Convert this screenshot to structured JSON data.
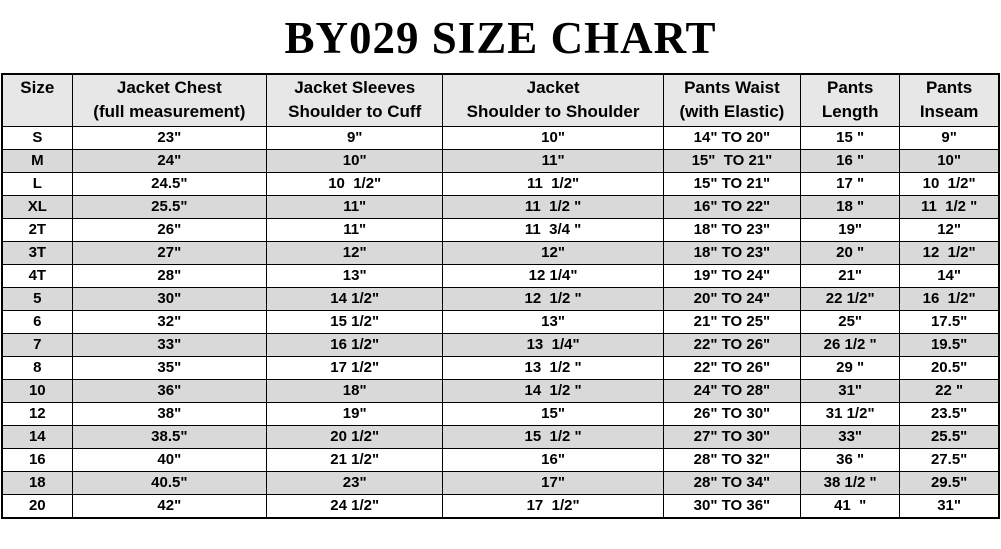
{
  "title": "BY029 SIZE CHART",
  "colors": {
    "header_bg": "#e7e7e7",
    "stripe_bg": "#d9d9d9",
    "row_bg": "#ffffff",
    "border": "#000000",
    "text": "#000000"
  },
  "table": {
    "columns": [
      {
        "line1": "Size",
        "line2": ""
      },
      {
        "line1": "Jacket Chest",
        "line2": "(full measurement)"
      },
      {
        "line1": "Jacket Sleeves",
        "line2": "Shoulder to Cuff"
      },
      {
        "line1": "Jacket",
        "line2": "Shoulder to Shoulder"
      },
      {
        "line1": "Pants Waist",
        "line2": "(with Elastic)"
      },
      {
        "line1": "Pants",
        "line2": "Length"
      },
      {
        "line1": "Pants",
        "line2": "Inseam"
      }
    ],
    "rows": [
      [
        "S",
        "23\"",
        "9\"",
        "10\"",
        "14\" TO 20\"",
        "15 \"",
        "9\""
      ],
      [
        "M",
        "24\"",
        "10\"",
        "11\"",
        "15\"  TO 21\"",
        "16 \"",
        "10\""
      ],
      [
        "L",
        "24.5\"",
        "10  1/2\"",
        "11  1/2\"",
        "15\" TO 21\"",
        "17 \"",
        "10  1/2\""
      ],
      [
        "XL",
        "25.5\"",
        "11\"",
        "11  1/2 \"",
        "16\" TO 22\"",
        "18 \"",
        "11  1/2 \""
      ],
      [
        "2T",
        "26\"",
        "11\"",
        "11  3/4 \"",
        "18\" TO 23\"",
        "19\"",
        "12\""
      ],
      [
        "3T",
        "27\"",
        "12\"",
        "12\"",
        "18\" TO 23\"",
        "20 \"",
        "12  1/2\""
      ],
      [
        "4T",
        "28\"",
        "13\"",
        "12 1/4\"",
        "19\" TO 24\"",
        "21\"",
        "14\""
      ],
      [
        "5",
        "30\"",
        "14 1/2\"",
        "12  1/2 \"",
        "20\" TO 24\"",
        "22 1/2\"",
        "16  1/2\""
      ],
      [
        "6",
        "32\"",
        "15 1/2\"",
        "13\"",
        "21\" TO 25\"",
        "25\"",
        "17.5\""
      ],
      [
        "7",
        "33\"",
        "16 1/2\"",
        "13  1/4\"",
        "22\" TO 26\"",
        "26 1/2 \"",
        "19.5\""
      ],
      [
        "8",
        "35\"",
        "17 1/2\"",
        "13  1/2 \"",
        "22\" TO 26\"",
        "29 \"",
        "20.5\""
      ],
      [
        "10",
        "36\"",
        "18\"",
        "14  1/2 \"",
        "24\" TO 28\"",
        "31\"",
        "22 \""
      ],
      [
        "12",
        "38\"",
        "19\"",
        "15\"",
        "26\" TO 30\"",
        "31 1/2\"",
        "23.5\""
      ],
      [
        "14",
        "38.5\"",
        "20 1/2\"",
        "15  1/2 \"",
        "27\" TO 30\"",
        "33\"",
        "25.5\""
      ],
      [
        "16",
        "40\"",
        "21 1/2\"",
        "16\"",
        "28\" TO 32\"",
        "36 \"",
        "27.5\""
      ],
      [
        "18",
        "40.5\"",
        "23\"",
        "17\"",
        "28\" TO 34\"",
        "38 1/2 \"",
        "29.5\""
      ],
      [
        "20",
        "42\"",
        "24 1/2\"",
        "17  1/2\"",
        "30\" TO 36\"",
        "41  \"",
        "31\""
      ]
    ]
  }
}
